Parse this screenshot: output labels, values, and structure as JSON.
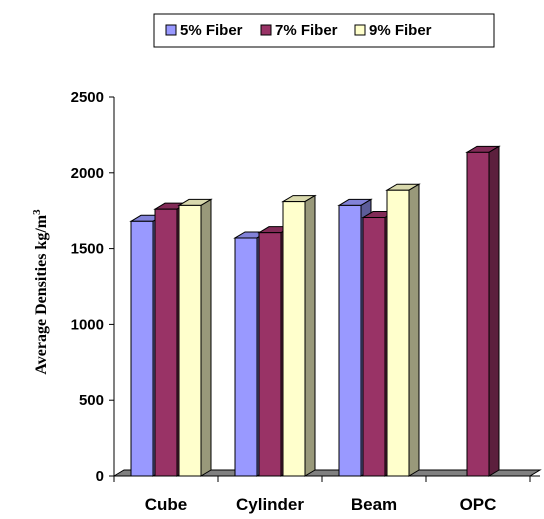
{
  "chart_data": {
    "type": "bar",
    "categories": [
      "Cube",
      "Cylinder",
      "Beam",
      "OPC"
    ],
    "series": [
      {
        "name": "5% Fiber",
        "values": [
          1680,
          1570,
          1785,
          null
        ],
        "color": "#9999ff"
      },
      {
        "name": "7% Fiber",
        "values": [
          1760,
          1605,
          1705,
          2135
        ],
        "color": "#993366"
      },
      {
        "name": "9% Fiber",
        "values": [
          1785,
          1810,
          1885,
          null
        ],
        "color": "#ffffcc"
      }
    ],
    "title": "",
    "xlabel": "",
    "ylabel": "Average Densities kg/m",
    "ylabel_superscript": "3",
    "ylim": [
      0,
      2500
    ],
    "yticks": [
      0,
      500,
      1000,
      1500,
      2000,
      2500
    ],
    "grid": false,
    "legend_position": "top",
    "style": "3d-bar"
  }
}
